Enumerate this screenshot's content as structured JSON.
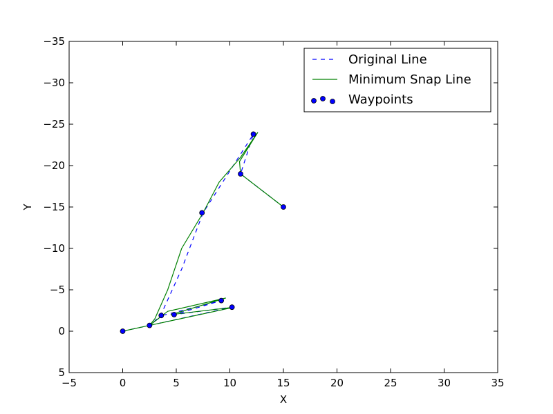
{
  "chart_data": {
    "type": "line",
    "xlabel": "X",
    "ylabel": "Y",
    "xlim": [
      -5,
      35
    ],
    "ylim": [
      5,
      -35
    ],
    "x_ticks": [
      -5,
      0,
      5,
      10,
      15,
      20,
      25,
      30,
      35
    ],
    "y_ticks": [
      -35,
      -30,
      -25,
      -20,
      -15,
      -10,
      -5,
      0,
      5
    ],
    "x_tick_labels": [
      "−5",
      "0",
      "5",
      "10",
      "15",
      "20",
      "25",
      "30",
      "35"
    ],
    "y_tick_labels": [
      "−35",
      "−30",
      "−25",
      "−20",
      "−15",
      "−10",
      "−5",
      "0",
      "5"
    ],
    "grid": false,
    "legend_position": "top-right",
    "colors": {
      "original": "#0000ff",
      "snap": "#008000",
      "waypoint_fill": "#0000ff",
      "waypoint_edge": "#000000"
    },
    "series": [
      {
        "name": "Original Line",
        "style": "dashed",
        "x": [
          0,
          2.5,
          3.5,
          5.5,
          7.5,
          12.2,
          11.0,
          15.0
        ],
        "y": [
          0,
          -0.7,
          -1.8,
          -7.5,
          -14.3,
          -23.8,
          -19.0,
          -15.0
        ]
      },
      {
        "name": "Minimum Snap Line",
        "style": "solid",
        "x": [
          0,
          2.5,
          3.0,
          4.2,
          5.5,
          7.5,
          9.0,
          11.0,
          12.6,
          10.9,
          11.0,
          15.0
        ],
        "y": [
          0,
          -0.7,
          -1.5,
          -5.0,
          -10.0,
          -14.3,
          -18.0,
          -21.0,
          -24.0,
          -20.5,
          -19.0,
          -15.0
        ]
      },
      {
        "name": "Original Line",
        "style": "dashed",
        "x": [
          2.5,
          3.7,
          9.2,
          4.8,
          10.2,
          2.5
        ],
        "y": [
          -0.7,
          -1.9,
          -3.7,
          -2.0,
          -2.9,
          -0.7
        ]
      },
      {
        "name": "Minimum Snap Line",
        "style": "solid",
        "x": [
          2.5,
          4.2,
          9.6,
          4.5,
          10.4,
          2.5
        ],
        "y": [
          -0.7,
          -2.4,
          -4.0,
          -2.0,
          -2.9,
          -0.7
        ]
      }
    ],
    "waypoints": {
      "name": "Waypoints",
      "x": [
        0.0,
        2.5,
        3.6,
        4.8,
        9.2,
        10.2,
        7.4,
        12.2,
        11.0,
        15.0
      ],
      "y": [
        0.0,
        -0.7,
        -1.9,
        -2.0,
        -3.7,
        -2.9,
        -14.3,
        -23.8,
        -19.0,
        -15.0
      ]
    }
  }
}
